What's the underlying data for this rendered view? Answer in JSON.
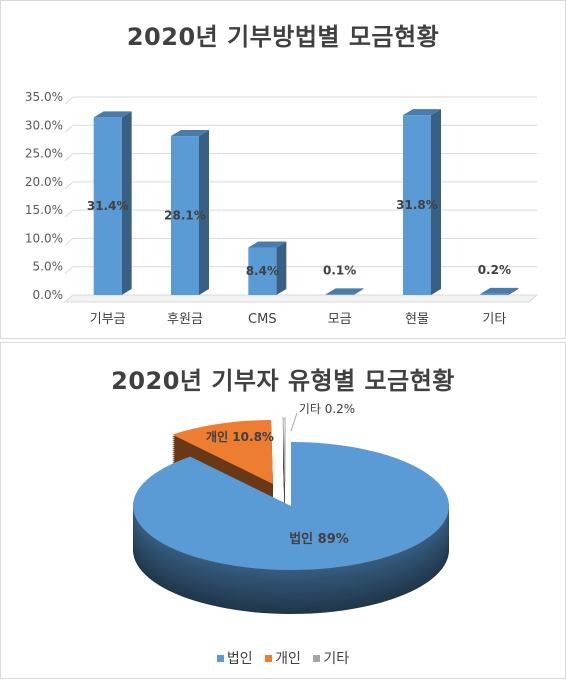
{
  "chart_data": [
    {
      "type": "bar",
      "title": "2020년 기부방법별 모금현황",
      "categories": [
        "기부금",
        "후원금",
        "CMS",
        "모금",
        "현물",
        "기타"
      ],
      "values": [
        31.4,
        28.1,
        8.4,
        0.1,
        31.8,
        0.2
      ],
      "data_labels": [
        "31.4%",
        "28.1%",
        "8.4%",
        "0.1%",
        "31.8%",
        "0.2%"
      ],
      "yticks": [
        "0.0%",
        "5.0%",
        "10.0%",
        "15.0%",
        "20.0%",
        "25.0%",
        "30.0%",
        "35.0%"
      ],
      "ylim": [
        0,
        35
      ],
      "grid": true,
      "color": "#5b9bd5"
    },
    {
      "type": "pie",
      "title": "2020년 기부자 유형별 모금현황",
      "labels": [
        "법인",
        "개인",
        "기타"
      ],
      "values": [
        89,
        10.8,
        0.2
      ],
      "data_labels": [
        "법인 89%",
        "개인 10.8%",
        "기타 0.2%"
      ],
      "colors": [
        "#5b9bd5",
        "#ed7d31",
        "#a5a5a5"
      ],
      "legend": "bottom"
    }
  ]
}
